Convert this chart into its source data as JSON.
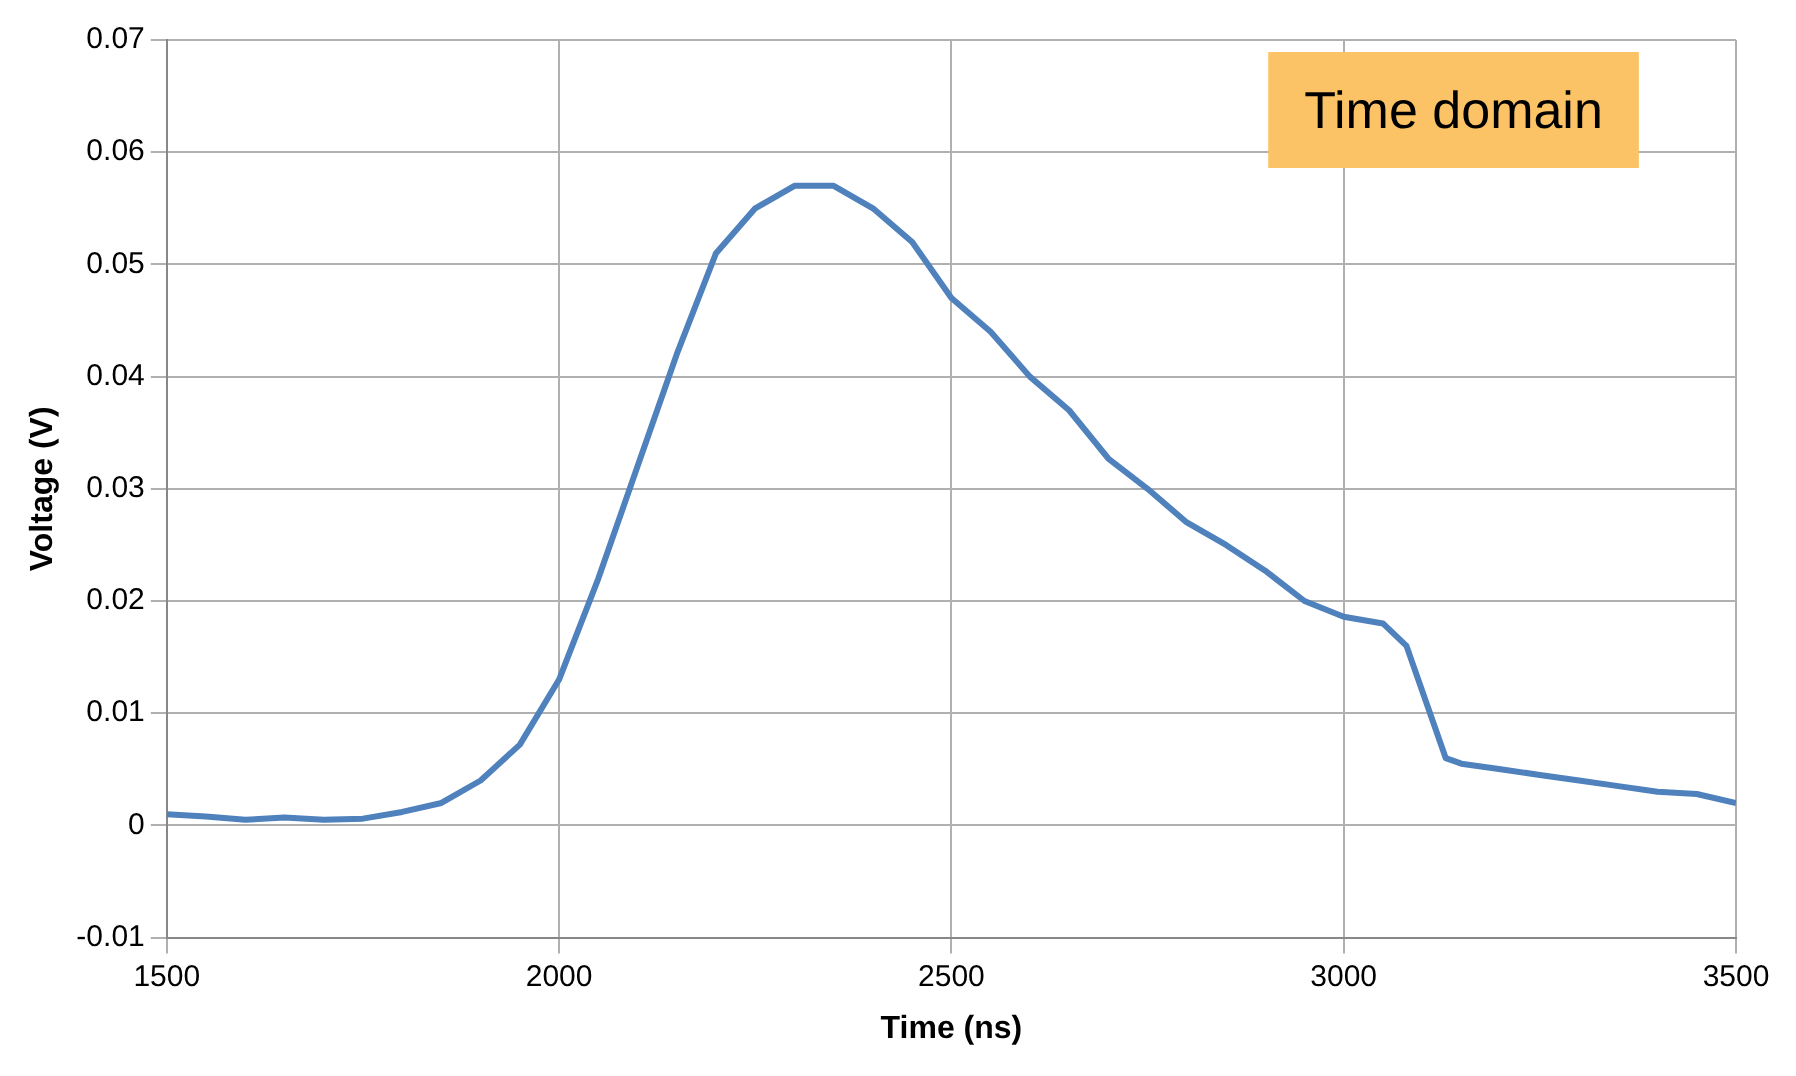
{
  "chart_data": {
    "type": "line",
    "xlabel": "Time (ns)",
    "ylabel": "Voltage (V)",
    "annotations": [
      "Time domain"
    ],
    "x": [
      1500,
      1550,
      1600,
      1650,
      1700,
      1750,
      1800,
      1850,
      1900,
      1950,
      2000,
      2050,
      2100,
      2150,
      2200,
      2250,
      2300,
      2350,
      2400,
      2450,
      2500,
      2550,
      2600,
      2650,
      2700,
      2750,
      2800,
      2850,
      2900,
      2950,
      3000,
      3050,
      3080,
      3100,
      3130,
      3150,
      3200,
      3250,
      3300,
      3350,
      3400,
      3450,
      3500
    ],
    "series": [
      {
        "color": "#4f81bd",
        "values": [
          0.001,
          0.0008,
          0.0005,
          0.0007,
          0.0005,
          0.0006,
          0.0012,
          0.002,
          0.004,
          0.0072,
          0.013,
          0.022,
          0.032,
          0.042,
          0.051,
          0.055,
          0.057,
          0.057,
          0.055,
          0.052,
          0.047,
          0.044,
          0.04,
          0.037,
          0.0327,
          0.03,
          0.027,
          0.025,
          0.0227,
          0.02,
          0.0186,
          0.018,
          0.016,
          0.012,
          0.006,
          0.0055,
          0.005,
          0.0045,
          0.004,
          0.0035,
          0.003,
          0.0028,
          0.002
        ]
      }
    ],
    "xlim": [
      1500,
      3500
    ],
    "xticks": [
      1500,
      2000,
      2500,
      3000,
      3500
    ],
    "ylim": [
      -0.01,
      0.07
    ],
    "yticks": [
      -0.01,
      0,
      0.01,
      0.02,
      0.03,
      0.04,
      0.05,
      0.06,
      0.07
    ],
    "grid": true,
    "legend": false,
    "marker": "none",
    "line_style": "solid"
  }
}
